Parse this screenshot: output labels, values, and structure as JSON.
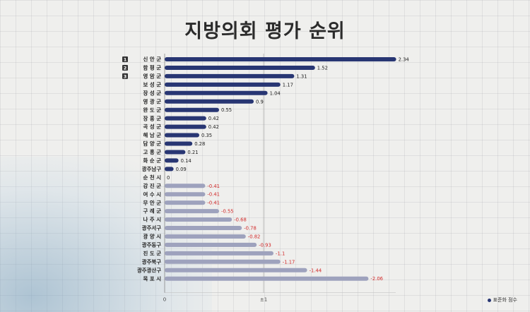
{
  "chart_data": {
    "type": "bar",
    "orientation": "horizontal",
    "title": "지방의회 평가 순위",
    "categories": [
      "신 안 군",
      "함 평 군",
      "영 암 군",
      "보 성 군",
      "장 성 군",
      "영 광 군",
      "완 도 군",
      "장 흥 군",
      "곡 성 군",
      "해 남 군",
      "담 양 군",
      "고 흥 군",
      "화 순 군",
      "광주남구",
      "순 천 시",
      "강 진 군",
      "여 수 시",
      "무 안 군",
      "구 례 군",
      "나 주 시",
      "광주서구",
      "광 양 시",
      "광주동구",
      "진 도 군",
      "광주북구",
      "광주광산구",
      "목 포 시"
    ],
    "rank_badges": [
      "1",
      "2",
      "3"
    ],
    "values": [
      2.34,
      1.52,
      1.31,
      1.17,
      1.04,
      0.9,
      0.55,
      0.42,
      0.42,
      0.35,
      0.28,
      0.21,
      0.14,
      0.09,
      0,
      -0.41,
      -0.41,
      -0.41,
      -0.55,
      -0.68,
      -0.78,
      -0.82,
      -0.93,
      -1.1,
      -1.17,
      -1.44,
      -2.06
    ],
    "value_labels": [
      "2.34",
      "1.52",
      "1.31",
      "1.17",
      "1.04",
      "0.9",
      "0.55",
      "0.42",
      "0.42",
      "0.35",
      "0.28",
      "0.21",
      "0.14",
      "0.09",
      "0",
      "-0.41",
      "-0.41",
      "-0.41",
      "-0.55",
      "-0.68",
      "-0.78",
      "-0.82",
      "-0.93",
      "-1.1",
      "-1.17",
      "-1.44",
      "-2.06"
    ],
    "x_ticks": [
      "0",
      "±1"
    ],
    "legend": "표준화 점수",
    "legend_position": "bottom-right",
    "grid": true,
    "colors": {
      "positive": "#283673",
      "negative": "#9ea2bd",
      "positive_label": "#222222",
      "negative_label": "#d22b2b"
    }
  }
}
